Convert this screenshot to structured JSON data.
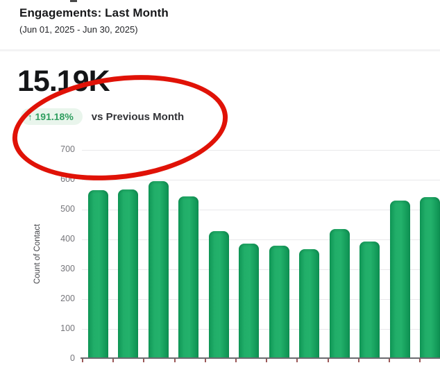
{
  "header": {
    "title": "Engagements: Last Month",
    "subtitle": "(Jun 01, 2025 - Jun 30, 2025)"
  },
  "metric": {
    "value": "15.19K",
    "delta_arrow": "↑",
    "delta": "191.18%",
    "comparison_label": "vs Previous Month",
    "delta_text_color": "#2f9e5f",
    "delta_bg_color": "#e9f5ec"
  },
  "annotation": {
    "shape": "hand-drawn-ellipse",
    "color": "#e01207",
    "circled_content": "191.18% vs Previous Month delta badge"
  },
  "chart_data": {
    "type": "bar",
    "title": "",
    "xlabel": "",
    "ylabel": "Count of Contact",
    "ylim": [
      0,
      700
    ],
    "yticks": [
      0,
      100,
      200,
      300,
      400,
      500,
      600,
      700
    ],
    "grid": true,
    "legend": false,
    "bar_color": "#1ba562",
    "x_tick_labels_visible": false,
    "note": "daily engagements; 12th bar clipped at right edge of screenshot",
    "values": [
      565,
      568,
      595,
      545,
      427,
      386,
      379,
      368,
      436,
      394,
      531,
      543
    ]
  }
}
